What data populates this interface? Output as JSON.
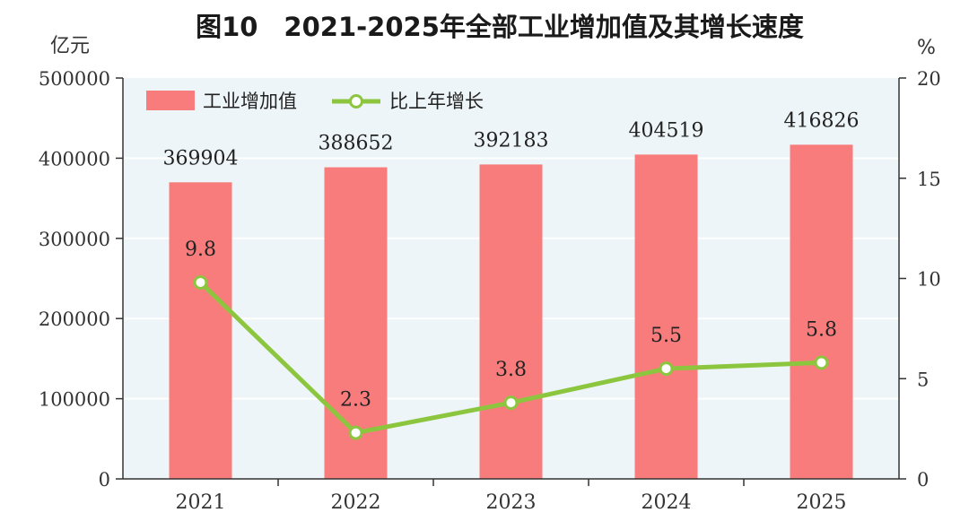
{
  "title": "图10　2021-2025年全部工业增加值及其增长速度",
  "colors": {
    "plot_bg": "#edf5f8",
    "bar": "#f87c7c",
    "line": "#8cc63f",
    "axis": "#333333"
  },
  "chart_data": {
    "type": "bar",
    "title": "图10　2021-2025年全部工业增加值及其增长速度",
    "categories": [
      "2021",
      "2022",
      "2023",
      "2024",
      "2025"
    ],
    "series": [
      {
        "name": "工业增加值",
        "type": "bar",
        "axis": "left",
        "values": [
          369904,
          388652,
          392183,
          404519,
          416826
        ],
        "labels": [
          "369904",
          "388652",
          "392183",
          "404519",
          "416826"
        ]
      },
      {
        "name": "比上年增长",
        "type": "line",
        "axis": "right",
        "values": [
          9.8,
          2.3,
          3.8,
          5.5,
          5.8
        ],
        "labels": [
          "9.8",
          "2.3",
          "3.8",
          "5.5",
          "5.8"
        ]
      }
    ],
    "y_left": {
      "unit": "亿元",
      "ylim": [
        0,
        500000
      ],
      "ticks": [
        "0",
        "100000",
        "200000",
        "300000",
        "400000",
        "500000"
      ]
    },
    "y_right": {
      "unit": "%",
      "ylim": [
        0,
        20
      ],
      "ticks": [
        "0",
        "5",
        "10",
        "15",
        "20"
      ]
    },
    "grid": "horizontal",
    "legend_position": "top-left"
  }
}
